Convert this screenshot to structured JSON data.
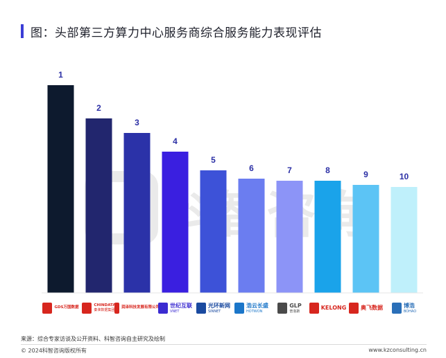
{
  "title": "图：头部第三方算力中心服务商综合服务能力表现评估",
  "source": "来源：综合专家访谈及公开资料、科智咨询自主研究及绘制",
  "copyright": "© 2024科智咨询版权所有",
  "website": "www.kzconsulting.cn",
  "watermark_text": "科智咨询",
  "logos": [
    {
      "name": "GDS万国数据",
      "color": "#d7261e",
      "icon": "gds-logo-icon"
    },
    {
      "name": "CHINDATA",
      "sub": "秦淮数据集团",
      "color": "#d7261e",
      "icon": "chindata-logo-icon"
    },
    {
      "name": "润泽科技发展有限公司",
      "color": "#d7261e",
      "icon": "runze-logo-icon"
    },
    {
      "name": "世纪互联",
      "sub": "VNET",
      "color": "#3b2bd1",
      "icon": "vnet-logo-icon"
    },
    {
      "name": "光环新网",
      "sub": "SINNET",
      "color": "#1a4aa0",
      "icon": "sinnet-logo-icon"
    },
    {
      "name": "浩云长盛",
      "sub": "HOTWON",
      "color": "#1b76c9",
      "icon": "hotwon-logo-icon"
    },
    {
      "name": "GLP",
      "sub": "普洛斯",
      "color": "#4a4a4a",
      "icon": "glp-logo-icon"
    },
    {
      "name": "KELONG",
      "color": "#d7261e",
      "icon": "kelong-logo-icon"
    },
    {
      "name": "奥飞数据",
      "color": "#d7261e",
      "icon": "aofei-logo-icon"
    },
    {
      "name": "博浩",
      "sub": "BOHAO",
      "color": "#2a6fb8",
      "icon": "bohao-logo-icon"
    }
  ],
  "chart_data": {
    "type": "bar",
    "title": "图：头部第三方算力中心服务商综合服务能力表现评估",
    "categories": [
      "GDS万国数据",
      "CHINDATA",
      "润泽科技",
      "世纪互联",
      "光环新网",
      "浩云长盛",
      "GLP",
      "KELONG",
      "奥飞数据",
      "博浩"
    ],
    "ranks": [
      "1",
      "2",
      "3",
      "4",
      "5",
      "6",
      "7",
      "8",
      "9",
      "10"
    ],
    "values": [
      100,
      84,
      77,
      68,
      59,
      55,
      54,
      54,
      52,
      51
    ],
    "colors": [
      "#0d1a2e",
      "#22266e",
      "#2b32a8",
      "#3a1fe0",
      "#3d52d8",
      "#6b7df0",
      "#8c94f7",
      "#1aa3ea",
      "#5cc4f5",
      "#bff0fb"
    ],
    "ylim": [
      0,
      100
    ]
  }
}
